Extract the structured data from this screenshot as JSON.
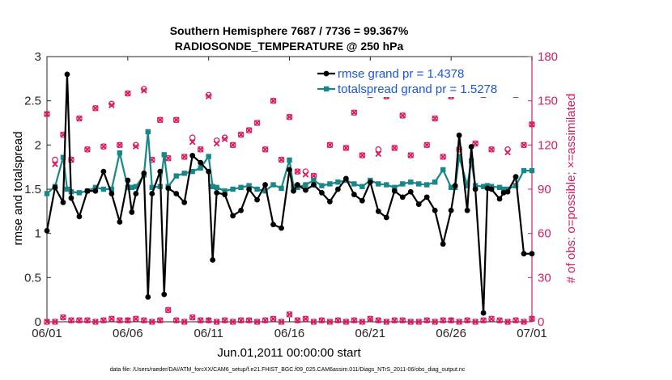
{
  "chart_data": {
    "type": "line",
    "title_line1": "Southern Hemisphere 7687 / 7736 = 99.367%",
    "title_line2": "RADIOSONDE_TEMPERATURE @ 250 hPa",
    "xlabel": "Jun.01,2011 00:00:00 start",
    "ylabel_left": "rmse and totalspread",
    "ylabel_right": "# of obs: o=possible; ×=assimilated",
    "footnote": "data file: /Users/raeder/DAI/ATM_forcXX/CAM6_setup/f.e21.FHIST_BGC.f09_025.CAM6assim.011/Diags_NTrS_2011-06/obs_diag_output.nc",
    "x_tick_labels": [
      "06/01",
      "06/06",
      "06/11",
      "06/16",
      "06/21",
      "06/26",
      "07/01"
    ],
    "x_tick_days": [
      0,
      5,
      10,
      15,
      20,
      25,
      30
    ],
    "xlim": [
      0,
      30
    ],
    "ylim_left": [
      0,
      3
    ],
    "y_ticks_left": [
      "0",
      "0.5",
      "1",
      "1.5",
      "2",
      "2.5",
      "3"
    ],
    "ylim_right": [
      0,
      180
    ],
    "y_ticks_right": [
      "0",
      "30",
      "60",
      "90",
      "120",
      "150",
      "180"
    ],
    "colors": {
      "rmse": "#000000",
      "spread": "#17878a",
      "obs": "#d81b60",
      "legend_text": "#1a56e0",
      "right_axis": "#d81b60"
    },
    "legend": [
      {
        "name": "rmse grand pr = 1.4378",
        "color": "#000000"
      },
      {
        "name": "totalspread grand pr = 1.5278",
        "color": "#17878a"
      }
    ],
    "series": [
      {
        "name": "rmse",
        "x": [
          0,
          0.5,
          1,
          1.25,
          1.5,
          2,
          2.5,
          3,
          3.5,
          4,
          4.5,
          5,
          5.25,
          5.5,
          6,
          6.25,
          6.5,
          7,
          7.25,
          7.5,
          8,
          8.5,
          9,
          9.5,
          10,
          10.25,
          10.5,
          11,
          11.5,
          12,
          12.5,
          13,
          13.5,
          14,
          14.5,
          15,
          15.25,
          15.5,
          16,
          16.5,
          17,
          17.5,
          18,
          18.5,
          19,
          19.5,
          20,
          20.5,
          21,
          21.5,
          22,
          22.5,
          23,
          23.5,
          24,
          24.5,
          25,
          25.25,
          25.5,
          26,
          26.25,
          26.5,
          27,
          27.25,
          27.5,
          28,
          28.25,
          28.5,
          29,
          29.5,
          30
        ],
        "values": [
          1.03,
          1.52,
          1.35,
          2.8,
          1.4,
          1.19,
          1.48,
          1.48,
          1.7,
          1.45,
          1.13,
          1.6,
          1.24,
          1.45,
          1.68,
          0.28,
          1.45,
          1.7,
          0.31,
          1.51,
          1.45,
          1.35,
          1.88,
          1.8,
          1.7,
          0.7,
          1.46,
          1.44,
          1.2,
          1.26,
          1.5,
          1.38,
          1.55,
          1.1,
          1.06,
          1.72,
          1.48,
          1.55,
          1.49,
          1.55,
          1.46,
          1.36,
          1.5,
          1.62,
          1.44,
          1.37,
          1.58,
          1.25,
          1.18,
          1.48,
          1.41,
          1.47,
          1.33,
          1.41,
          1.26,
          0.88,
          1.26,
          1.54,
          2.11,
          1.26,
          1.98,
          1.5,
          0.1,
          1.51,
          1.5,
          1.39,
          1.46,
          1.47,
          1.64,
          0.77,
          0.77
        ]
      },
      {
        "name": "totalspread",
        "x": [
          0,
          0.5,
          1,
          1.25,
          1.5,
          2,
          2.5,
          3,
          3.5,
          4,
          4.5,
          5,
          5.25,
          5.5,
          6,
          6.25,
          6.5,
          7,
          7.25,
          7.5,
          8,
          8.5,
          9,
          9.5,
          10,
          10.25,
          10.5,
          11,
          11.5,
          12,
          12.5,
          13,
          13.5,
          14,
          14.5,
          15,
          15.25,
          15.5,
          16,
          16.5,
          17,
          17.5,
          18,
          18.5,
          19,
          19.5,
          20,
          20.5,
          21,
          21.5,
          22,
          22.5,
          23,
          23.5,
          24,
          24.5,
          25,
          25.25,
          25.5,
          26,
          26.25,
          26.5,
          27,
          27.25,
          27.5,
          28,
          28.25,
          28.5,
          29,
          29.5,
          30
        ],
        "values": [
          1.45,
          1.53,
          1.86,
          1.5,
          1.47,
          1.46,
          1.48,
          1.52,
          1.5,
          1.5,
          1.91,
          1.52,
          1.52,
          1.53,
          1.66,
          2.15,
          1.52,
          1.53,
          1.89,
          1.53,
          1.65,
          1.68,
          1.7,
          1.74,
          1.87,
          1.53,
          1.52,
          1.48,
          1.5,
          1.52,
          1.54,
          1.5,
          1.48,
          1.55,
          1.51,
          1.83,
          1.53,
          1.52,
          1.55,
          1.6,
          1.54,
          1.56,
          1.58,
          1.6,
          1.56,
          1.53,
          1.6,
          1.56,
          1.55,
          1.52,
          1.56,
          1.58,
          1.56,
          1.55,
          1.58,
          1.72,
          1.52,
          1.52,
          1.87,
          1.54,
          1.82,
          1.54,
          1.53,
          1.54,
          1.53,
          1.52,
          1.5,
          1.5,
          1.54,
          1.71,
          1.71
        ]
      },
      {
        "name": "obs_possible",
        "x": [
          0,
          0.5,
          1,
          1.5,
          2,
          2.5,
          3,
          3.5,
          4,
          4.5,
          5,
          5.5,
          6,
          6.5,
          7,
          7.5,
          8,
          8.5,
          9,
          9.5,
          10,
          10.5,
          11,
          11.5,
          12,
          12.5,
          13,
          13.5,
          14,
          14.5,
          15,
          15.5,
          16,
          16.5,
          17,
          17.5,
          18,
          18.5,
          19,
          19.5,
          20,
          20.5,
          21,
          21.5,
          22,
          22.5,
          23,
          23.5,
          24,
          24.5,
          25,
          25.5,
          26,
          26.5,
          27,
          27.5,
          28,
          28.5,
          29,
          29.5,
          30
        ],
        "values": [
          141,
          110,
          127,
          110,
          138,
          117,
          145,
          119,
          148,
          120,
          155,
          120,
          158,
          110,
          137,
          111,
          137,
          112,
          125,
          117,
          154,
          123,
          125,
          120,
          127,
          130,
          135,
          117,
          150,
          110,
          139,
          102,
          102,
          99,
          157,
          120,
          162,
          118,
          142,
          113,
          154,
          117,
          153,
          118,
          140,
          113,
          158,
          120,
          138,
          112,
          153,
          117,
          159,
          121,
          154,
          117,
          159,
          117,
          154,
          120,
          134
        ]
      },
      {
        "name": "obs_assimilated",
        "x": [
          0,
          0.5,
          1,
          1.5,
          2,
          2.5,
          3,
          3.5,
          4,
          4.5,
          5,
          5.5,
          6,
          6.5,
          7,
          7.5,
          8,
          8.5,
          9,
          9.5,
          10,
          10.5,
          11,
          11.5,
          12,
          12.5,
          13,
          13.5,
          14,
          14.5,
          15,
          15.5,
          16,
          16.5,
          17,
          17.5,
          18,
          18.5,
          19,
          19.5,
          20,
          20.5,
          21,
          21.5,
          22,
          22.5,
          23,
          23.5,
          24,
          24.5,
          25,
          25.5,
          26,
          26.5,
          27,
          27.5,
          28,
          28.5,
          29,
          29.5,
          30
        ],
        "values": [
          141,
          107,
          127,
          110,
          138,
          117,
          145,
          119,
          147,
          120,
          155,
          119,
          157,
          110,
          137,
          111,
          137,
          112,
          122,
          117,
          153,
          121,
          124,
          120,
          127,
          130,
          135,
          117,
          150,
          110,
          139,
          102,
          100,
          99,
          157,
          120,
          162,
          118,
          142,
          113,
          154,
          114,
          153,
          118,
          140,
          113,
          158,
          120,
          138,
          112,
          153,
          117,
          159,
          121,
          154,
          117,
          159,
          115,
          154,
          120,
          134
        ]
      },
      {
        "name": "obs_rejected_possible",
        "x": [
          0,
          0.5,
          1,
          1.5,
          2,
          2.5,
          3,
          3.5,
          4,
          4.5,
          5,
          5.5,
          6,
          6.5,
          7,
          7.5,
          8,
          8.5,
          9,
          9.5,
          10,
          10.5,
          11,
          11.5,
          12,
          12.5,
          13,
          13.5,
          14,
          14.5,
          15,
          15.5,
          16,
          16.5,
          17,
          17.5,
          18,
          18.5,
          19,
          19.5,
          20,
          20.5,
          21,
          21.5,
          22,
          22.5,
          23,
          23.5,
          24,
          24.5,
          25,
          25.5,
          26,
          26.5,
          27,
          27.5,
          28,
          28.5,
          29,
          29.5,
          30
        ],
        "values": [
          0,
          0,
          3,
          1,
          1,
          1,
          0,
          1,
          2,
          1,
          1,
          2,
          1,
          0,
          1,
          8,
          1,
          0,
          3,
          1,
          1,
          0,
          1,
          0,
          1,
          1,
          0,
          1,
          2,
          0,
          5,
          1,
          2,
          0,
          1,
          0,
          1,
          0,
          1,
          0,
          2,
          1,
          0,
          1,
          1,
          0,
          0,
          1,
          0,
          1,
          1,
          0,
          1,
          0,
          1,
          2,
          1,
          0,
          1,
          0,
          2
        ]
      }
    ]
  }
}
